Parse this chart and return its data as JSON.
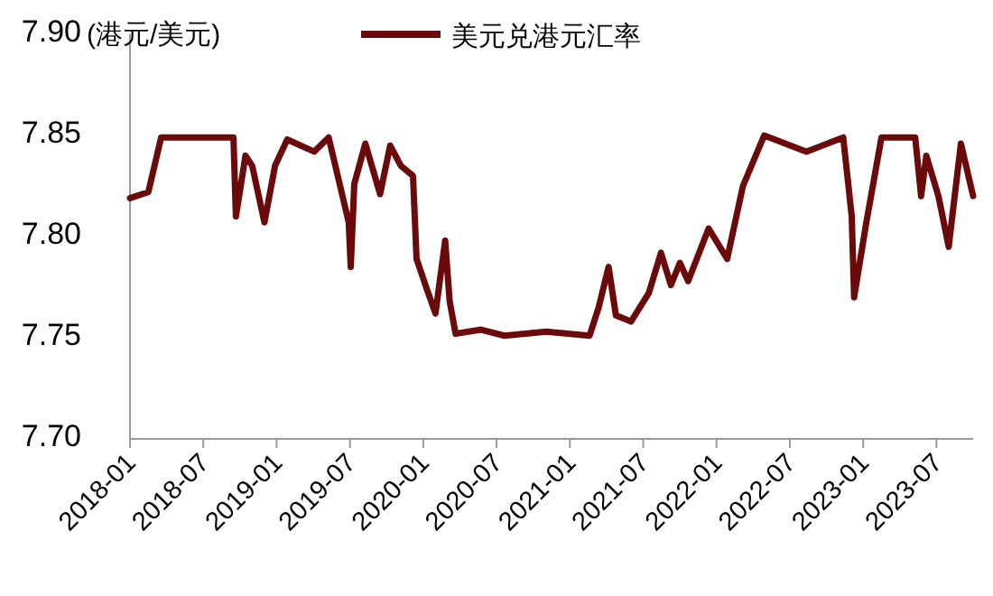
{
  "chart_data": {
    "type": "line",
    "ylabel": "(港元/美元)",
    "legend": "top",
    "x": [
      "2018-01-01",
      "2018-02-15",
      "2018-03-18",
      "2018-09-15",
      "2018-09-21",
      "2018-10-15",
      "2018-11-01",
      "2018-12-01",
      "2018-12-28",
      "2019-01-28",
      "2019-04-03",
      "2019-05-09",
      "2019-06-28",
      "2019-07-03",
      "2019-07-12",
      "2019-08-09",
      "2019-09-15",
      "2019-10-10",
      "2019-11-06",
      "2019-12-06",
      "2019-12-15",
      "2020-01-10",
      "2020-02-01",
      "2020-02-24",
      "2020-03-06",
      "2020-03-21",
      "2020-05-24",
      "2020-07-21",
      "2020-11-03",
      "2021-02-18",
      "2021-03-12",
      "2021-04-06",
      "2021-04-24",
      "2021-06-01",
      "2021-07-15",
      "2021-08-15",
      "2021-09-09",
      "2021-10-01",
      "2021-10-22",
      "2021-12-12",
      "2022-01-28",
      "2022-03-06",
      "2022-04-28",
      "2022-08-12",
      "2022-11-12",
      "2022-12-03",
      "2022-12-09",
      "2023-01-09",
      "2023-02-15",
      "2023-05-09",
      "2023-05-24",
      "2023-06-06",
      "2023-07-06",
      "2023-08-01",
      "2023-09-01",
      "2023-10-01"
    ],
    "series": [
      {
        "name": "美元兑港元汇率",
        "color": "#6b0a0a",
        "values": [
          7.819,
          7.822,
          7.849,
          7.849,
          7.81,
          7.84,
          7.835,
          7.807,
          7.835,
          7.848,
          7.842,
          7.849,
          7.807,
          7.785,
          7.826,
          7.846,
          7.821,
          7.845,
          7.835,
          7.83,
          7.789,
          7.774,
          7.762,
          7.798,
          7.768,
          7.752,
          7.754,
          7.751,
          7.753,
          7.751,
          7.765,
          7.785,
          7.761,
          7.758,
          7.772,
          7.792,
          7.776,
          7.787,
          7.778,
          7.804,
          7.789,
          7.825,
          7.85,
          7.842,
          7.849,
          7.81,
          7.77,
          7.807,
          7.849,
          7.849,
          7.82,
          7.84,
          7.82,
          7.795,
          7.846,
          7.82
        ]
      }
    ],
    "xlim": [
      "2018-01-01",
      "2023-10-01"
    ],
    "xticks": [
      "2018-01",
      "2018-07",
      "2019-01",
      "2019-07",
      "2020-01",
      "2020-07",
      "2021-01",
      "2021-07",
      "2022-01",
      "2022-07",
      "2023-01",
      "2023-07"
    ],
    "ylim": [
      7.7,
      7.9
    ],
    "yticks": [
      {
        "value": 7.7,
        "label": "7.70"
      },
      {
        "value": 7.75,
        "label": "7.75"
      },
      {
        "value": 7.8,
        "label": "7.80"
      },
      {
        "value": 7.85,
        "label": "7.85"
      },
      {
        "value": 7.9,
        "label": "7.90"
      }
    ],
    "grid": false
  }
}
